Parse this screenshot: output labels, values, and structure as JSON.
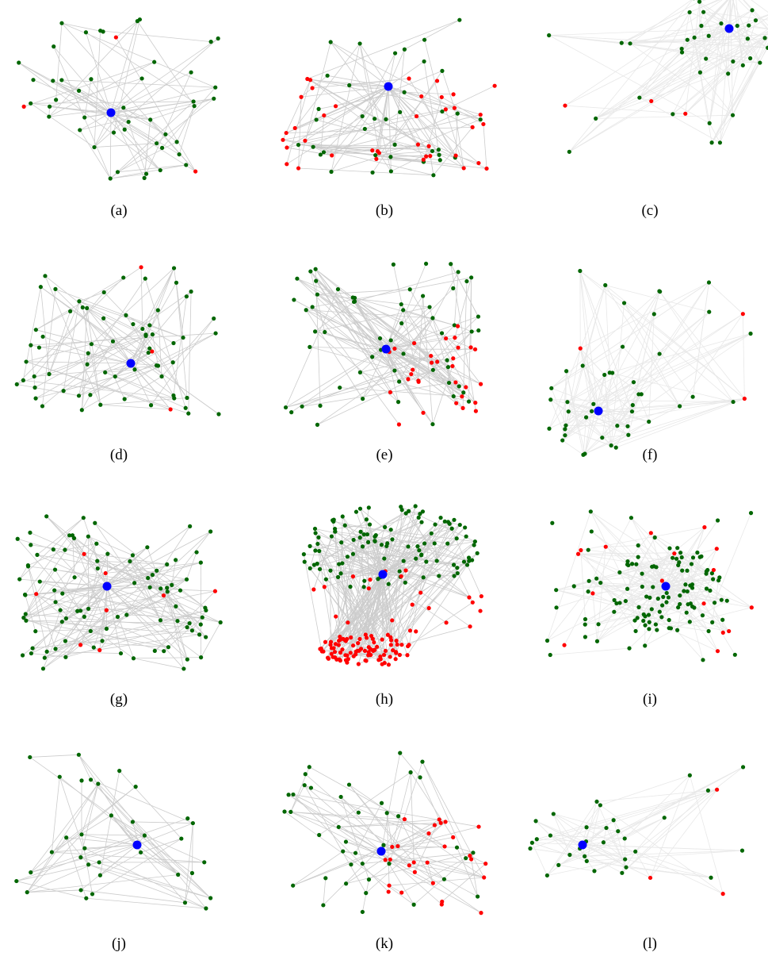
{
  "colors": {
    "edge": "#cccccc",
    "edge_faint": "#e8e8e8",
    "focus_node": "#0000ff",
    "normal_node": "#006600",
    "anomalous_node": "#ff0000"
  },
  "legend_semantics": {
    "focus_node_color": "blue",
    "normal_node_color": "green",
    "anomalous_node_color": "red"
  },
  "panels": [
    {
      "label": "(a)",
      "style": "sparse-star",
      "green": 45,
      "red": 3,
      "edges": 80
    },
    {
      "label": "(b)",
      "style": "dense-mixed",
      "green": 38,
      "red": 40,
      "edges": 130
    },
    {
      "label": "(c)",
      "style": "faint-dense",
      "green": 45,
      "red": 3,
      "edges": 140
    },
    {
      "label": "(d)",
      "style": "sparse-star",
      "green": 65,
      "red": 3,
      "edges": 110
    },
    {
      "label": "(e)",
      "style": "dense-mixed",
      "green": 60,
      "red": 30,
      "edges": 150
    },
    {
      "label": "(f)",
      "style": "faint-dense",
      "green": 45,
      "red": 3,
      "edges": 150
    },
    {
      "label": "(g)",
      "style": "sparse-star",
      "green": 95,
      "red": 8,
      "edges": 170
    },
    {
      "label": "(h)",
      "style": "two-clusters",
      "green": 110,
      "red": 110,
      "edges": 260
    },
    {
      "label": "(i)",
      "style": "faint-dense",
      "green": 120,
      "red": 16,
      "edges": 220
    },
    {
      "label": "(j)",
      "style": "sparse-star",
      "green": 35,
      "red": 0,
      "edges": 70
    },
    {
      "label": "(k)",
      "style": "tree-mixed",
      "green": 40,
      "red": 28,
      "edges": 90
    },
    {
      "label": "(l)",
      "style": "faint-dense",
      "green": 32,
      "red": 3,
      "edges": 90
    }
  ]
}
